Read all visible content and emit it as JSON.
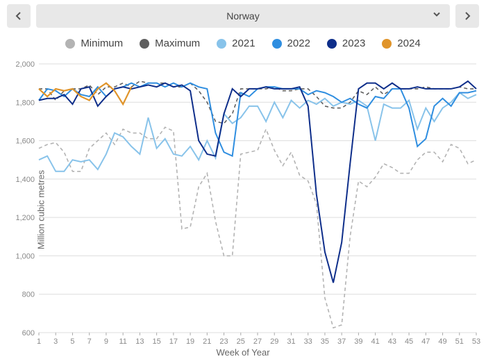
{
  "selector": {
    "label": "Norway",
    "prev_icon": "chevron-left",
    "next_icon": "chevron-right",
    "dropdown_icon": "chevron-down"
  },
  "chart": {
    "type": "line",
    "xlabel": "Week of Year",
    "ylabel": "Million cubic metres",
    "xlim": [
      1,
      53
    ],
    "ylim": [
      600,
      2000
    ],
    "xtick_step": 2,
    "xtick_start": 1,
    "xtick_end": 53,
    "ytick_step": 200,
    "ytick_start": 600,
    "ytick_end": 2000,
    "background_color": "#ffffff",
    "grid_color": "#dddddd",
    "axis_font_size": 11,
    "label_font_size": 13,
    "series": [
      {
        "name": "Minimum",
        "color": "#b3b3b3",
        "dash": "5,4",
        "width": 1.6,
        "values": [
          1560,
          1580,
          1590,
          1540,
          1440,
          1440,
          1560,
          1600,
          1640,
          1580,
          1660,
          1640,
          1640,
          1610,
          1610,
          1670,
          1650,
          1140,
          1150,
          1360,
          1430,
          1180,
          1000,
          1000,
          1530,
          1540,
          1550,
          1660,
          1550,
          1470,
          1540,
          1420,
          1390,
          1270,
          780,
          625,
          640,
          1100,
          1390,
          1360,
          1410,
          1480,
          1460,
          1430,
          1430,
          1500,
          1540,
          1540,
          1490,
          1580,
          1560,
          1480,
          1500
        ]
      },
      {
        "name": "Maximum",
        "color": "#5f5f5f",
        "dash": "5,4",
        "width": 1.6,
        "values": [
          1870,
          1870,
          1810,
          1860,
          1870,
          1870,
          1890,
          1840,
          1880,
          1880,
          1900,
          1880,
          1910,
          1900,
          1900,
          1900,
          1880,
          1880,
          1900,
          1860,
          1800,
          1700,
          1690,
          1740,
          1870,
          1870,
          1870,
          1870,
          1880,
          1860,
          1860,
          1870,
          1870,
          1830,
          1780,
          1770,
          1770,
          1800,
          1860,
          1840,
          1880,
          1840,
          1870,
          1870,
          1870,
          1870,
          1880,
          1870,
          1870,
          1870,
          1880,
          1870,
          1870
        ]
      },
      {
        "name": "2021",
        "color": "#88c3ea",
        "dash": null,
        "width": 2,
        "values": [
          1500,
          1520,
          1440,
          1440,
          1500,
          1490,
          1500,
          1450,
          1530,
          1640,
          1620,
          1570,
          1530,
          1720,
          1560,
          1610,
          1530,
          1520,
          1570,
          1500,
          1600,
          1510,
          1740,
          1690,
          1720,
          1780,
          1780,
          1700,
          1800,
          1720,
          1810,
          1770,
          1810,
          1790,
          1820,
          1780,
          1800,
          1790,
          1810,
          1780,
          1600,
          1790,
          1770,
          1770,
          1810,
          1660,
          1770,
          1700,
          1770,
          1800,
          1850,
          1820,
          1840
        ]
      },
      {
        "name": "2022",
        "color": "#2f8ee0",
        "dash": null,
        "width": 2,
        "values": [
          1810,
          1870,
          1860,
          1830,
          1870,
          1840,
          1830,
          1880,
          1830,
          1870,
          1880,
          1900,
          1880,
          1900,
          1900,
          1880,
          1900,
          1880,
          1900,
          1880,
          1870,
          1640,
          1540,
          1520,
          1850,
          1830,
          1870,
          1880,
          1880,
          1870,
          1870,
          1870,
          1840,
          1860,
          1850,
          1830,
          1800,
          1820,
          1790,
          1770,
          1830,
          1820,
          1870,
          1870,
          1770,
          1570,
          1610,
          1780,
          1820,
          1780,
          1850,
          1850,
          1860
        ]
      },
      {
        "name": "2023",
        "color": "#0e2e8a",
        "dash": null,
        "width": 2,
        "values": [
          1810,
          1820,
          1820,
          1840,
          1790,
          1870,
          1880,
          1780,
          1830,
          1870,
          1880,
          1870,
          1880,
          1890,
          1880,
          1900,
          1880,
          1890,
          1860,
          1600,
          1530,
          1520,
          1740,
          1870,
          1830,
          1870,
          1870,
          1880,
          1870,
          1870,
          1870,
          1880,
          1780,
          1320,
          1020,
          860,
          1070,
          1480,
          1870,
          1900,
          1900,
          1870,
          1900,
          1870,
          1870,
          1880,
          1870,
          1870,
          1870,
          1870,
          1880,
          1910,
          1870
        ]
      },
      {
        "name": "2024",
        "color": "#e0942a",
        "dash": null,
        "width": 2.2,
        "values": [
          1870,
          1830,
          1870,
          1860,
          1870,
          1830,
          1810,
          1870,
          1900,
          1860,
          1790,
          1880
        ]
      }
    ]
  }
}
